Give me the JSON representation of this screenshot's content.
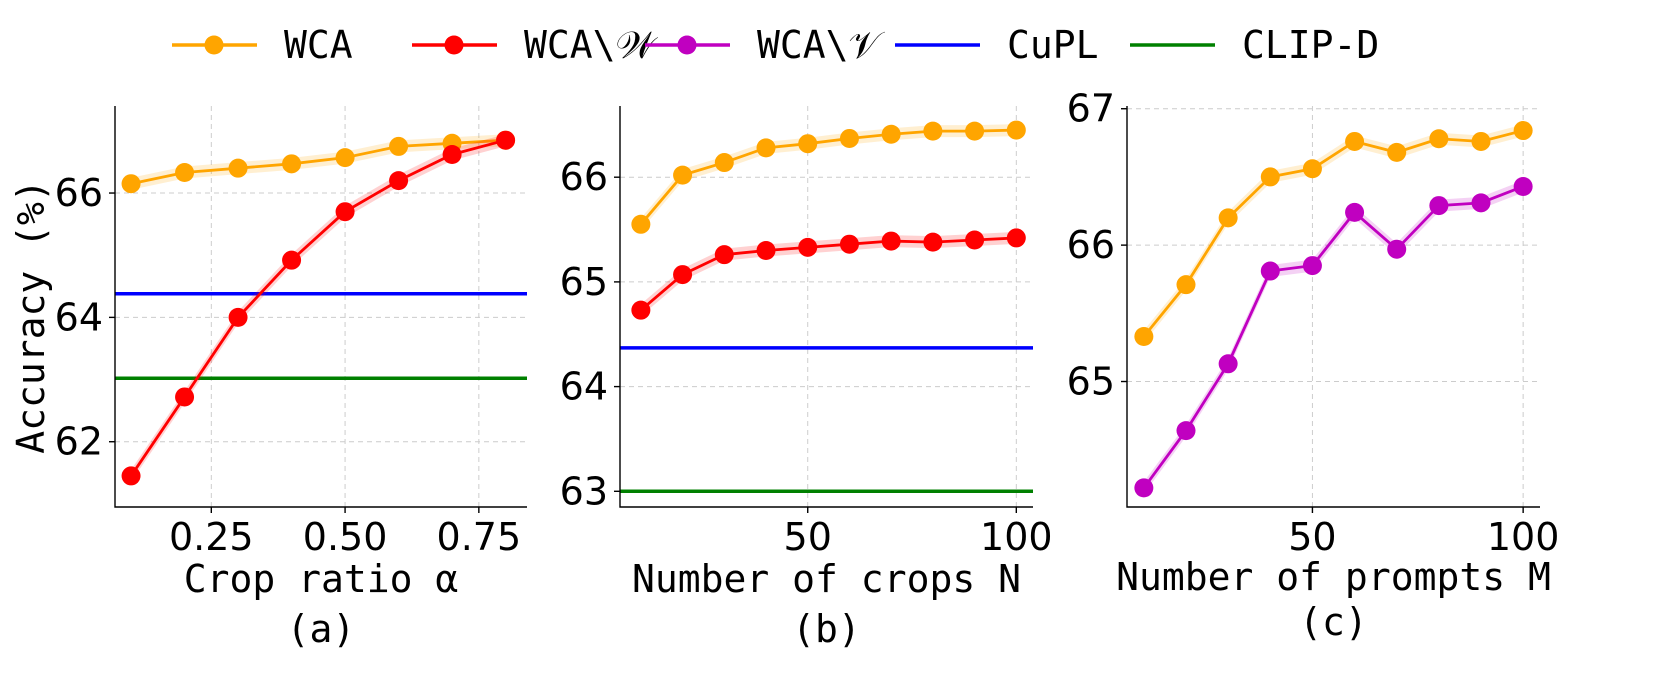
{
  "legend": [
    {
      "name": "WCA",
      "color": "#FFA500",
      "marker": "circle"
    },
    {
      "name": "WCA\\𝒲",
      "color": "#FF0000",
      "marker": "circle"
    },
    {
      "name": "WCA\\𝒱",
      "color": "#C000C0",
      "marker": "circle"
    },
    {
      "name": "CuPL",
      "color": "#0000FF",
      "marker": "none"
    },
    {
      "name": "CLIP-D",
      "color": "#008000",
      "marker": "none"
    }
  ],
  "legend_placement": "top-center",
  "chart_data": [
    {
      "type": "line",
      "panel_label": "(a)",
      "xlabel": "Crop ratio α",
      "ylabel": "Accuracy (%)",
      "xlim": [
        0.07,
        0.84
      ],
      "ylim": [
        60.95,
        67.4
      ],
      "xticks": [
        0.25,
        0.5,
        0.75
      ],
      "xtick_labels": [
        "0.25",
        "0.50",
        "0.75"
      ],
      "yticks": [
        62,
        64,
        66
      ],
      "ytick_labels": [
        "62",
        "64",
        "66"
      ],
      "grid": true,
      "series": [
        {
          "name": "WCA",
          "color": "#FFA500",
          "x": [
            0.1,
            0.2,
            0.3,
            0.4,
            0.5,
            0.6,
            0.7,
            0.8
          ],
          "y": [
            66.15,
            66.33,
            66.4,
            66.47,
            66.57,
            66.75,
            66.8,
            66.85
          ]
        },
        {
          "name": "WCA\\𝒲",
          "color": "#FF0000",
          "x": [
            0.1,
            0.2,
            0.3,
            0.4,
            0.5,
            0.6,
            0.7,
            0.8
          ],
          "y": [
            61.45,
            62.72,
            64.0,
            64.92,
            65.7,
            66.2,
            66.62,
            66.85
          ]
        }
      ],
      "hlines": [
        {
          "name": "CuPL",
          "color": "#0000FF",
          "y": 64.38
        },
        {
          "name": "CLIP-D",
          "color": "#008000",
          "y": 63.02
        }
      ]
    },
    {
      "type": "line",
      "panel_label": "(b)",
      "xlabel": "Number of crops N",
      "ylabel": "",
      "xlim": [
        5,
        104
      ],
      "ylim": [
        62.85,
        66.68
      ],
      "xticks": [
        50,
        100
      ],
      "xtick_labels": [
        "50",
        "100"
      ],
      "yticks": [
        63,
        64,
        65,
        66
      ],
      "ytick_labels": [
        "63",
        "64",
        "65",
        "66"
      ],
      "grid": true,
      "series": [
        {
          "name": "WCA",
          "color": "#FFA500",
          "x": [
            10,
            20,
            30,
            40,
            50,
            60,
            70,
            80,
            90,
            100
          ],
          "y": [
            65.55,
            66.02,
            66.14,
            66.28,
            66.32,
            66.37,
            66.41,
            66.44,
            66.44,
            66.45
          ]
        },
        {
          "name": "WCA\\𝒲",
          "color": "#FF0000",
          "x": [
            10,
            20,
            30,
            40,
            50,
            60,
            70,
            80,
            90,
            100
          ],
          "y": [
            64.73,
            65.07,
            65.26,
            65.3,
            65.33,
            65.36,
            65.39,
            65.38,
            65.4,
            65.42
          ]
        }
      ],
      "hlines": [
        {
          "name": "CuPL",
          "color": "#0000FF",
          "y": 64.37
        },
        {
          "name": "CLIP-D",
          "color": "#008000",
          "y": 63.0
        }
      ]
    },
    {
      "type": "line",
      "panel_label": "(c)",
      "xlabel": "Number of prompts M",
      "ylabel": "",
      "xlim": [
        6,
        104
      ],
      "ylim": [
        64.08,
        67.02
      ],
      "xticks": [
        50,
        100
      ],
      "xtick_labels": [
        "50",
        "100"
      ],
      "yticks": [
        65,
        66,
        67
      ],
      "ytick_labels": [
        "65",
        "66",
        "67"
      ],
      "grid": true,
      "series": [
        {
          "name": "WCA",
          "color": "#FFA500",
          "x": [
            10,
            20,
            30,
            40,
            50,
            60,
            70,
            80,
            90,
            100
          ],
          "y": [
            65.33,
            65.71,
            66.2,
            66.5,
            66.56,
            66.76,
            66.68,
            66.78,
            66.76,
            66.84
          ]
        },
        {
          "name": "WCA\\𝒱",
          "color": "#C000C0",
          "x": [
            10,
            20,
            30,
            40,
            50,
            60,
            70,
            80,
            90,
            100
          ],
          "y": [
            64.22,
            64.64,
            65.13,
            65.81,
            65.85,
            66.24,
            65.97,
            66.29,
            66.31,
            66.43
          ]
        }
      ],
      "hlines": []
    }
  ]
}
